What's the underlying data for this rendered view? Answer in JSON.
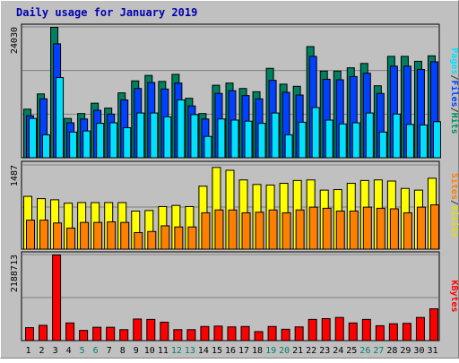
{
  "chart_data": {
    "type": "bar",
    "title": "Daily usage for January 2019",
    "categories": [
      "1",
      "2",
      "3",
      "4",
      "5",
      "6",
      "7",
      "8",
      "9",
      "10",
      "11",
      "12",
      "13",
      "14",
      "15",
      "16",
      "17",
      "18",
      "19",
      "20",
      "21",
      "22",
      "23",
      "24",
      "25",
      "26",
      "27",
      "28",
      "29",
      "30",
      "31"
    ],
    "weekend_days": [
      "5",
      "6",
      "12",
      "13",
      "19",
      "20",
      "26",
      "27"
    ],
    "panels": [
      {
        "id": "top",
        "ymax": 24030,
        "ymax_label": "24030",
        "right_label": [
          {
            "text": "Pages",
            "color": "#00e0ff"
          },
          {
            "text": "/",
            "color": "#333333"
          },
          {
            "text": "Files",
            "color": "#0040ff"
          },
          {
            "text": "/",
            "color": "#333333"
          },
          {
            "text": "Hits",
            "color": "#009060"
          }
        ],
        "series": [
          {
            "name": "Hits",
            "color": "#008060",
            "values": [
              9000,
              11800,
              24030,
              7300,
              8200,
              10100,
              9200,
              12000,
              14200,
              15200,
              14100,
              15400,
              11000,
              8200,
              13400,
              13800,
              12800,
              12200,
              16500,
              13600,
              13200,
              20500,
              16000,
              16000,
              16600,
              17400,
              13300,
              18700,
              18700,
              17800,
              18800
            ]
          },
          {
            "name": "Files",
            "color": "#0040ff",
            "values": [
              7800,
              10900,
              21000,
              6500,
              7200,
              8800,
              8100,
              10700,
              12800,
              13900,
              12700,
              13800,
              9600,
              7200,
              11900,
              12400,
              11500,
              10900,
              14300,
              12100,
              11600,
              18700,
              14500,
              14400,
              15000,
              15600,
              11900,
              16900,
              16900,
              16300,
              17700
            ]
          },
          {
            "name": "Pages",
            "color": "#00e0ff",
            "values": [
              7300,
              4300,
              14800,
              4800,
              5000,
              6400,
              6500,
              5600,
              8300,
              8300,
              7600,
              10700,
              8000,
              4000,
              7200,
              7000,
              6800,
              6400,
              8300,
              4300,
              6600,
              9300,
              7000,
              6300,
              6500,
              8300,
              4800,
              8100,
              6200,
              6100,
              6700
            ]
          }
        ]
      },
      {
        "id": "mid",
        "ymax": 1487,
        "ymax_label": "1487",
        "right_label": [
          {
            "text": "Sites",
            "color": "#ff8000"
          },
          {
            "text": "/",
            "color": "#333333"
          },
          {
            "text": "Visits",
            "color": "#e0e000"
          }
        ],
        "series": [
          {
            "name": "Visits",
            "color": "#ffff00",
            "values": [
              940,
              900,
              880,
              820,
              830,
              830,
              830,
              830,
              680,
              690,
              760,
              780,
              760,
              1120,
              1450,
              1400,
              1230,
              1150,
              1140,
              1170,
              1220,
              1230,
              1050,
              1060,
              1170,
              1220,
              1230,
              1210,
              1080,
              1050,
              1260
            ]
          },
          {
            "name": "Sites",
            "color": "#ff8000",
            "values": [
              520,
              520,
              470,
              380,
              480,
              480,
              490,
              480,
              300,
              320,
              420,
              400,
              400,
              650,
              700,
              700,
              650,
              660,
              700,
              650,
              700,
              750,
              730,
              680,
              680,
              750,
              730,
              720,
              650,
              750,
              790
            ]
          }
        ]
      },
      {
        "id": "bot",
        "ymax": 2188713,
        "ymax_label": "2188713",
        "right_label": [
          {
            "text": "KBytes",
            "color": "#ff0000"
          }
        ],
        "series": [
          {
            "name": "KBytes",
            "color": "#ff0000",
            "values": [
              340000,
              400000,
              2188713,
              460000,
              270000,
              350000,
              350000,
              290000,
              560000,
              550000,
              480000,
              290000,
              290000,
              370000,
              380000,
              360000,
              370000,
              240000,
              370000,
              300000,
              360000,
              550000,
              570000,
              600000,
              460000,
              550000,
              390000,
              440000,
              450000,
              600000,
              820000
            ]
          }
        ]
      }
    ]
  }
}
